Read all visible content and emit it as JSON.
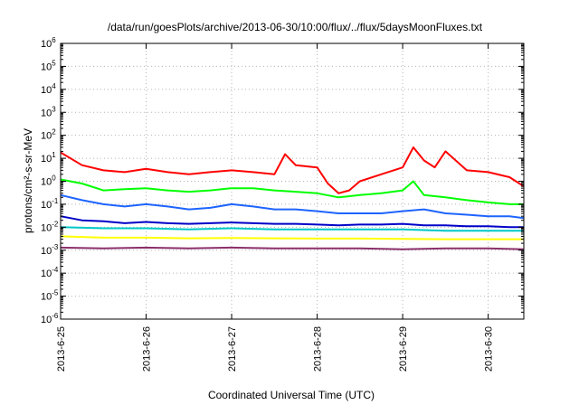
{
  "chart_data": {
    "type": "line",
    "title": "/data/run/goesPlots/archive/2013-06-30/10:00/flux/../flux/5daysMoonFluxes.txt",
    "xlabel": "Coordinated Universal Time (UTC)",
    "ylabel": "protons/cm²-s-sr-MeV",
    "y_scale": "log",
    "ylim": [
      1e-06,
      1000000.0
    ],
    "xlim": [
      "2013-06-25T00:00",
      "2013-06-30T10:00"
    ],
    "x_tick_labels": [
      "2013-6-25",
      "2013-6-26",
      "2013-6-27",
      "2013-6-28",
      "2013-6-29",
      "2013-6-30"
    ],
    "y_tick_exponents": [
      -6,
      -5,
      -4,
      -3,
      -2,
      -1,
      0,
      1,
      2,
      3,
      4,
      5,
      6
    ],
    "grid": true,
    "legend": "none",
    "series": [
      {
        "color": "#ff0000",
        "x": [
          "2013-06-25T00:00",
          "2013-06-25T06:00",
          "2013-06-25T12:00",
          "2013-06-25T18:00",
          "2013-06-26T00:00",
          "2013-06-26T06:00",
          "2013-06-26T12:00",
          "2013-06-26T18:00",
          "2013-06-27T00:00",
          "2013-06-27T06:00",
          "2013-06-27T12:00",
          "2013-06-27T15:00",
          "2013-06-27T18:00",
          "2013-06-28T00:00",
          "2013-06-28T03:00",
          "2013-06-28T06:00",
          "2013-06-28T09:00",
          "2013-06-28T12:00",
          "2013-06-28T18:00",
          "2013-06-29T00:00",
          "2013-06-29T03:00",
          "2013-06-29T06:00",
          "2013-06-29T09:00",
          "2013-06-29T12:00",
          "2013-06-29T18:00",
          "2013-06-30T00:00",
          "2013-06-30T06:00",
          "2013-06-30T10:00"
        ],
        "values": [
          18,
          5,
          3,
          2.5,
          3.5,
          2.5,
          2,
          2.5,
          3,
          2.5,
          2,
          15,
          5,
          4,
          0.8,
          0.3,
          0.4,
          1,
          2,
          4,
          30,
          8,
          4,
          20,
          3,
          2.5,
          1.5,
          0.6
        ]
      },
      {
        "color": "#00ff00",
        "x": [
          "2013-06-25T00:00",
          "2013-06-25T06:00",
          "2013-06-25T12:00",
          "2013-06-25T18:00",
          "2013-06-26T00:00",
          "2013-06-26T06:00",
          "2013-06-26T12:00",
          "2013-06-26T18:00",
          "2013-06-27T00:00",
          "2013-06-27T06:00",
          "2013-06-27T12:00",
          "2013-06-27T18:00",
          "2013-06-28T00:00",
          "2013-06-28T06:00",
          "2013-06-28T12:00",
          "2013-06-28T18:00",
          "2013-06-29T00:00",
          "2013-06-29T03:00",
          "2013-06-29T06:00",
          "2013-06-29T12:00",
          "2013-06-29T18:00",
          "2013-06-30T00:00",
          "2013-06-30T06:00",
          "2013-06-30T10:00"
        ],
        "values": [
          1.2,
          0.8,
          0.4,
          0.45,
          0.5,
          0.4,
          0.35,
          0.4,
          0.5,
          0.5,
          0.4,
          0.35,
          0.3,
          0.2,
          0.25,
          0.3,
          0.4,
          1,
          0.25,
          0.2,
          0.15,
          0.12,
          0.1,
          0.1
        ]
      },
      {
        "color": "#1e64ff",
        "x": [
          "2013-06-25T00:00",
          "2013-06-25T06:00",
          "2013-06-25T12:00",
          "2013-06-25T18:00",
          "2013-06-26T00:00",
          "2013-06-26T06:00",
          "2013-06-26T12:00",
          "2013-06-26T18:00",
          "2013-06-27T00:00",
          "2013-06-27T06:00",
          "2013-06-27T12:00",
          "2013-06-27T18:00",
          "2013-06-28T00:00",
          "2013-06-28T06:00",
          "2013-06-28T12:00",
          "2013-06-28T18:00",
          "2013-06-29T00:00",
          "2013-06-29T06:00",
          "2013-06-29T12:00",
          "2013-06-29T18:00",
          "2013-06-30T00:00",
          "2013-06-30T06:00",
          "2013-06-30T10:00"
        ],
        "values": [
          0.25,
          0.15,
          0.1,
          0.08,
          0.1,
          0.08,
          0.06,
          0.07,
          0.1,
          0.08,
          0.06,
          0.06,
          0.05,
          0.04,
          0.04,
          0.04,
          0.05,
          0.06,
          0.04,
          0.035,
          0.03,
          0.03,
          0.025
        ]
      },
      {
        "color": "#0000c8",
        "x": [
          "2013-06-25T00:00",
          "2013-06-25T06:00",
          "2013-06-25T12:00",
          "2013-06-25T18:00",
          "2013-06-26T00:00",
          "2013-06-26T06:00",
          "2013-06-26T12:00",
          "2013-06-26T18:00",
          "2013-06-27T00:00",
          "2013-06-27T06:00",
          "2013-06-27T12:00",
          "2013-06-27T18:00",
          "2013-06-28T00:00",
          "2013-06-28T06:00",
          "2013-06-28T12:00",
          "2013-06-28T18:00",
          "2013-06-29T00:00",
          "2013-06-29T06:00",
          "2013-06-29T12:00",
          "2013-06-29T18:00",
          "2013-06-30T00:00",
          "2013-06-30T06:00",
          "2013-06-30T10:00"
        ],
        "values": [
          0.03,
          0.02,
          0.018,
          0.015,
          0.017,
          0.015,
          0.014,
          0.015,
          0.016,
          0.015,
          0.014,
          0.014,
          0.013,
          0.012,
          0.013,
          0.013,
          0.014,
          0.012,
          0.012,
          0.011,
          0.011,
          0.01,
          0.01
        ]
      },
      {
        "color": "#00c8c8",
        "x": [
          "2013-06-25T00:00",
          "2013-06-25T12:00",
          "2013-06-26T00:00",
          "2013-06-26T12:00",
          "2013-06-27T00:00",
          "2013-06-27T12:00",
          "2013-06-28T00:00",
          "2013-06-28T12:00",
          "2013-06-29T00:00",
          "2013-06-29T12:00",
          "2013-06-30T00:00",
          "2013-06-30T10:00"
        ],
        "values": [
          0.01,
          0.009,
          0.009,
          0.008,
          0.009,
          0.008,
          0.008,
          0.008,
          0.008,
          0.007,
          0.007,
          0.007
        ]
      },
      {
        "color": "#ffff00",
        "x": [
          "2013-06-25T00:00",
          "2013-06-25T12:00",
          "2013-06-26T00:00",
          "2013-06-26T12:00",
          "2013-06-27T00:00",
          "2013-06-27T12:00",
          "2013-06-28T00:00",
          "2013-06-28T12:00",
          "2013-06-29T00:00",
          "2013-06-29T12:00",
          "2013-06-30T00:00",
          "2013-06-30T10:00"
        ],
        "values": [
          0.004,
          0.0035,
          0.0035,
          0.0033,
          0.0034,
          0.0033,
          0.0032,
          0.0032,
          0.0031,
          0.003,
          0.003,
          0.003
        ]
      },
      {
        "color": "#8b2f6b",
        "x": [
          "2013-06-25T00:00",
          "2013-06-25T12:00",
          "2013-06-26T00:00",
          "2013-06-26T12:00",
          "2013-06-27T00:00",
          "2013-06-27T12:00",
          "2013-06-28T00:00",
          "2013-06-28T12:00",
          "2013-06-29T00:00",
          "2013-06-29T12:00",
          "2013-06-30T00:00",
          "2013-06-30T10:00"
        ],
        "values": [
          0.0013,
          0.0012,
          0.0013,
          0.0012,
          0.0013,
          0.0012,
          0.0012,
          0.0012,
          0.0011,
          0.0012,
          0.0012,
          0.0011
        ]
      }
    ]
  }
}
